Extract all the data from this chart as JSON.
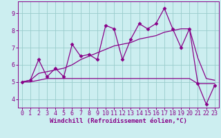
{
  "x": [
    0,
    1,
    2,
    3,
    4,
    5,
    6,
    7,
    8,
    9,
    10,
    11,
    12,
    13,
    14,
    15,
    16,
    17,
    18,
    19,
    20,
    21,
    22,
    23
  ],
  "line_main": [
    5.0,
    5.1,
    6.3,
    5.3,
    5.8,
    5.3,
    7.2,
    6.5,
    6.6,
    6.3,
    8.3,
    8.1,
    6.3,
    7.5,
    8.4,
    8.1,
    8.4,
    9.3,
    8.1,
    7.0,
    8.1,
    4.9,
    3.7,
    4.8
  ],
  "line_low": [
    5.0,
    5.0,
    5.1,
    5.2,
    5.2,
    5.2,
    5.2,
    5.2,
    5.2,
    5.2,
    5.2,
    5.2,
    5.2,
    5.2,
    5.2,
    5.2,
    5.2,
    5.2,
    5.2,
    5.2,
    5.2,
    4.9,
    4.9,
    4.9
  ],
  "line_hi": [
    5.0,
    5.1,
    5.5,
    5.6,
    5.7,
    5.8,
    6.0,
    6.3,
    6.5,
    6.7,
    6.9,
    7.1,
    7.2,
    7.3,
    7.5,
    7.6,
    7.7,
    7.9,
    8.0,
    8.1,
    8.1,
    6.4,
    5.2,
    5.1
  ],
  "line_color": "#880088",
  "bg_color": "#cceef0",
  "grid_color": "#99cccc",
  "xlabel": "Windchill (Refroidissement éolien,°C)",
  "xlim_min": -0.5,
  "xlim_max": 23.5,
  "ylim_min": 3.5,
  "ylim_max": 9.7,
  "yticks": [
    4,
    5,
    6,
    7,
    8,
    9
  ],
  "xticks": [
    0,
    1,
    2,
    3,
    4,
    5,
    6,
    7,
    8,
    9,
    10,
    11,
    12,
    13,
    14,
    15,
    16,
    17,
    18,
    19,
    20,
    21,
    22,
    23
  ],
  "markersize": 2.5,
  "linewidth": 0.9,
  "xlabel_fontsize": 6.5,
  "tick_fontsize": 6.0
}
